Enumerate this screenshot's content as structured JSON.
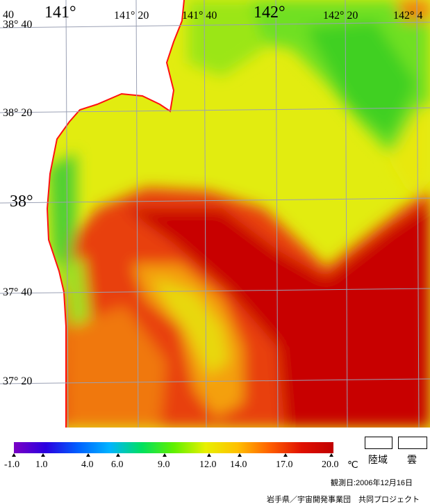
{
  "map": {
    "coast_color": "#ff1010",
    "graticule_color": "#9aa0b4",
    "land_color": "#ffffff",
    "lon_labels": [
      "141°",
      "141° 20",
      "141° 40",
      "142°",
      "142° 20",
      "142° 4"
    ],
    "lat_labels": [
      "38° 40",
      "38° 20",
      "38°",
      "37° 40",
      "37° 20"
    ],
    "corner_label": "40"
  },
  "legend": {
    "scale_values": [
      "-1.0",
      "1.0",
      "4.0",
      "6.0",
      "9.0",
      "12.0",
      "14.0",
      "17.0",
      "20.0"
    ],
    "unit": "℃",
    "colors": [
      "#7b00c4",
      "#2a00e0",
      "#0060ff",
      "#00b4ff",
      "#00e060",
      "#60f000",
      "#e8f000",
      "#ffc000",
      "#ff6000",
      "#e01000",
      "#c00000"
    ],
    "land_label": "陸域",
    "cloud_label": "雲",
    "observation_date": "観測日:2006年12月16日",
    "credit": "岩手県／宇宙開発事業団　共同プロジェクト"
  }
}
